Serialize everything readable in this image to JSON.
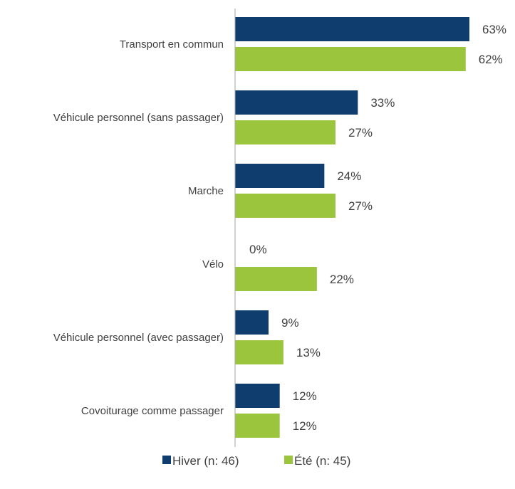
{
  "chart_data": {
    "type": "bar",
    "orientation": "horizontal",
    "categories": [
      "Transport en commun",
      "Véhicule personnel  (sans passager)",
      "Marche",
      "Vélo",
      "Véhicule personnel (avec passager)",
      "Covoiturage comme passager"
    ],
    "series": [
      {
        "name": "Hiver (n: 46)",
        "color": "#0F3D6E",
        "values": [
          63,
          33,
          24,
          0,
          9,
          12
        ]
      },
      {
        "name": "Été (n: 45)",
        "color": "#9BC53D",
        "values": [
          62,
          27,
          27,
          22,
          13,
          12
        ]
      }
    ],
    "value_suffix": "%",
    "xlim": [
      0,
      70
    ],
    "grid": false,
    "legend_position": "bottom"
  }
}
